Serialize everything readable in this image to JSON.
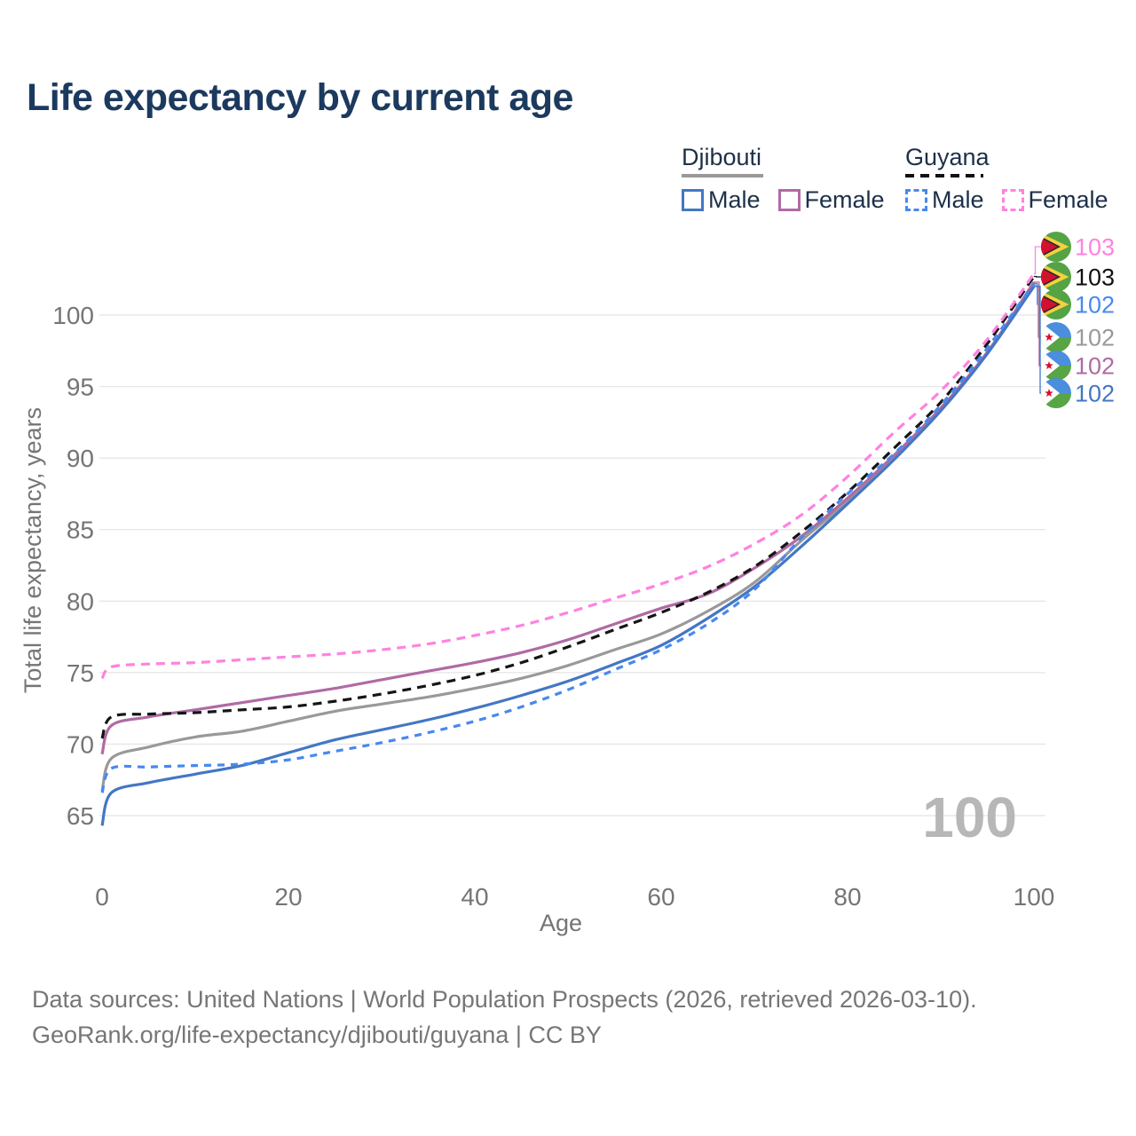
{
  "header": {
    "title": "Life expectancy by current age"
  },
  "legend": {
    "groups": [
      {
        "country": "Djibouti",
        "line_style": "solid",
        "underline_color": "#999999",
        "items": [
          {
            "label": "Male",
            "color": "#4377c4"
          },
          {
            "label": "Female",
            "color": "#b06aa5"
          }
        ]
      },
      {
        "country": "Guyana",
        "line_style": "dashed",
        "underline_color": "#111111",
        "items": [
          {
            "label": "Male",
            "color": "#4788f0"
          },
          {
            "label": "Female",
            "color": "#ff82df"
          }
        ]
      }
    ]
  },
  "axes": {
    "x_label": "Age",
    "y_label": "Total life expectancy, years"
  },
  "watermark": "100",
  "chart_data": {
    "type": "line",
    "title": "Life expectancy by current age",
    "xlabel": "Age",
    "ylabel": "Total life expectancy, years",
    "xlim": [
      0,
      100
    ],
    "ylim": [
      65,
      100
    ],
    "x_ticks": [
      0,
      20,
      40,
      60,
      80,
      100
    ],
    "y_ticks": [
      65,
      70,
      75,
      80,
      85,
      90,
      95,
      100
    ],
    "grid": "horizontal",
    "legend_position": "top-right",
    "ages": [
      0,
      1,
      5,
      10,
      15,
      20,
      25,
      30,
      35,
      40,
      45,
      50,
      55,
      60,
      65,
      70,
      75,
      80,
      85,
      90,
      95,
      100
    ],
    "series": [
      {
        "id": "djibouti-both",
        "name": "Djibouti (both sexes)",
        "country": "Djibouti",
        "color": "#999999",
        "dash": "none",
        "values": [
          66.7,
          69.0,
          69.8,
          70.5,
          70.9,
          71.6,
          72.3,
          72.8,
          73.3,
          73.9,
          74.6,
          75.5,
          76.6,
          77.7,
          79.3,
          81.3,
          84.2,
          87.0,
          90.1,
          93.4,
          97.4,
          102.1
        ]
      },
      {
        "id": "djibouti-female",
        "name": "Djibouti Female",
        "country": "Djibouti",
        "color": "#b06aa5",
        "dash": "none",
        "values": [
          69.3,
          71.3,
          71.9,
          72.4,
          72.9,
          73.4,
          73.9,
          74.5,
          75.1,
          75.7,
          76.4,
          77.3,
          78.4,
          79.5,
          80.5,
          82.3,
          84.5,
          87.2,
          90.2,
          93.5,
          97.4,
          102.3
        ]
      },
      {
        "id": "djibouti-male",
        "name": "Djibouti Male",
        "country": "Djibouti",
        "color": "#4377c4",
        "dash": "none",
        "values": [
          64.3,
          66.6,
          67.3,
          67.9,
          68.5,
          69.4,
          70.3,
          71.0,
          71.7,
          72.5,
          73.4,
          74.4,
          75.6,
          76.9,
          78.8,
          81.0,
          83.8,
          86.8,
          89.9,
          93.3,
          97.3,
          102.0
        ]
      },
      {
        "id": "guyana-both",
        "name": "Guyana (both sexes)",
        "country": "Guyana",
        "color": "#151515",
        "dash": "10 7",
        "values": [
          70.4,
          71.9,
          72.1,
          72.2,
          72.4,
          72.6,
          73.0,
          73.5,
          74.1,
          74.8,
          75.7,
          76.8,
          78.0,
          79.2,
          80.6,
          82.4,
          84.8,
          87.6,
          90.7,
          93.9,
          98.0,
          102.7
        ]
      },
      {
        "id": "guyana-male",
        "name": "Guyana Male",
        "country": "Guyana",
        "color": "#4788f0",
        "dash": "8 7",
        "values": [
          66.6,
          68.3,
          68.4,
          68.5,
          68.6,
          68.9,
          69.5,
          70.1,
          70.8,
          71.6,
          72.6,
          73.8,
          75.2,
          76.6,
          78.4,
          80.8,
          84.4,
          87.5,
          90.3,
          93.7,
          97.7,
          102.2
        ]
      },
      {
        "id": "guyana-female",
        "name": "Guyana Female",
        "country": "Guyana",
        "color": "#ff82df",
        "dash": "10 7",
        "values": [
          74.6,
          75.4,
          75.6,
          75.7,
          75.9,
          76.1,
          76.3,
          76.6,
          77.0,
          77.6,
          78.3,
          79.2,
          80.2,
          81.2,
          82.4,
          84.0,
          86.0,
          88.7,
          91.8,
          94.7,
          98.3,
          102.9
        ]
      }
    ]
  },
  "end_labels": [
    {
      "series": "guyana-female",
      "flag": "guyana",
      "value": "103",
      "color": "#ff82df"
    },
    {
      "series": "guyana-both",
      "flag": "guyana",
      "value": "103",
      "color": "#111111"
    },
    {
      "series": "guyana-male",
      "flag": "guyana",
      "value": "102",
      "color": "#4788f0"
    },
    {
      "series": "djibouti-both",
      "flag": "djibouti",
      "value": "102",
      "color": "#999999"
    },
    {
      "series": "djibouti-female",
      "flag": "djibouti",
      "value": "102",
      "color": "#b06aa5"
    },
    {
      "series": "djibouti-male",
      "flag": "djibouti",
      "value": "102",
      "color": "#4377c4"
    }
  ],
  "footer": {
    "line1": "Data sources: United Nations | World Population Prospects (2026, retrieved 2026-03-10).",
    "line2": "GeoRank.org/life-expectancy/djibouti/guyana | CC BY"
  }
}
